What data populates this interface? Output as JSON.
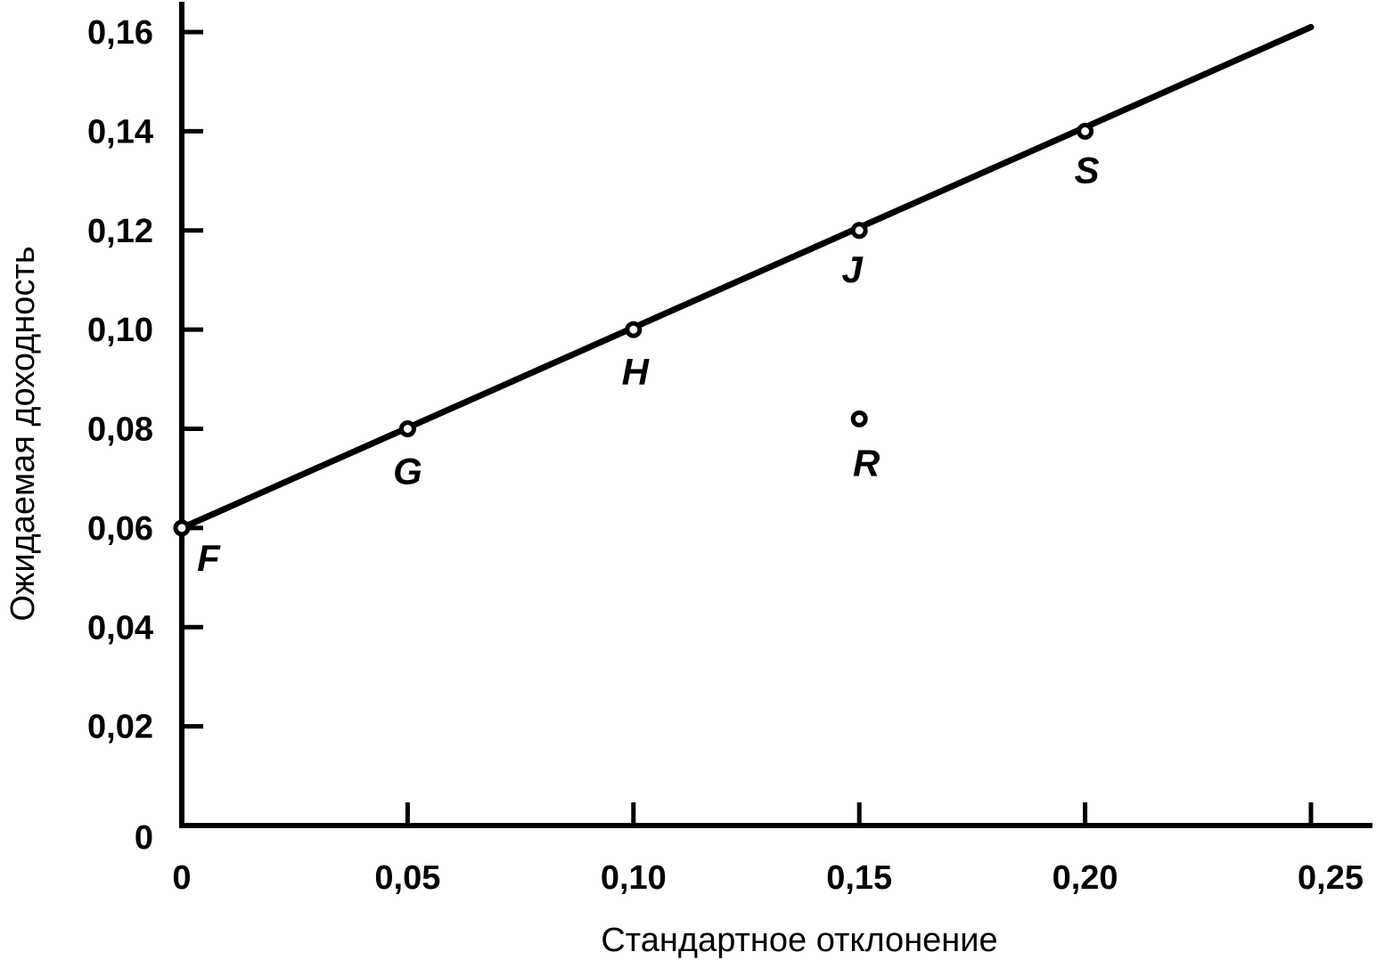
{
  "chart_data": {
    "type": "scatter",
    "title": "",
    "xlabel": "Стандартное отклонение",
    "ylabel": "Ожидаемая доходность",
    "xlim": [
      0,
      0.25
    ],
    "ylim": [
      0,
      0.16
    ],
    "x_ticks": [
      {
        "value": 0,
        "label": "0"
      },
      {
        "value": 0.05,
        "label": "0,05"
      },
      {
        "value": 0.1,
        "label": "0,10"
      },
      {
        "value": 0.15,
        "label": "0,15"
      },
      {
        "value": 0.2,
        "label": "0,20"
      },
      {
        "value": 0.25,
        "label": "0,25"
      }
    ],
    "y_ticks": [
      {
        "value": 0,
        "label": "0"
      },
      {
        "value": 0.02,
        "label": "0,02"
      },
      {
        "value": 0.04,
        "label": "0,04"
      },
      {
        "value": 0.06,
        "label": "0,06"
      },
      {
        "value": 0.08,
        "label": "0,08"
      },
      {
        "value": 0.1,
        "label": "0,10"
      },
      {
        "value": 0.12,
        "label": "0,12"
      },
      {
        "value": 0.14,
        "label": "0,14"
      },
      {
        "value": 0.16,
        "label": "0,16"
      }
    ],
    "points": [
      {
        "label": "F",
        "x": 0,
        "y": 0.06
      },
      {
        "label": "G",
        "x": 0.05,
        "y": 0.08
      },
      {
        "label": "H",
        "x": 0.1,
        "y": 0.1
      },
      {
        "label": "J",
        "x": 0.15,
        "y": 0.12
      },
      {
        "label": "S",
        "x": 0.2,
        "y": 0.14
      },
      {
        "label": "R",
        "x": 0.15,
        "y": 0.082
      }
    ],
    "line": {
      "x": [
        0,
        0.25
      ],
      "y": [
        0.06,
        0.161
      ]
    },
    "grid": false,
    "legend": "none",
    "colors": {
      "ink": "#000000",
      "background": "#ffffff"
    }
  }
}
